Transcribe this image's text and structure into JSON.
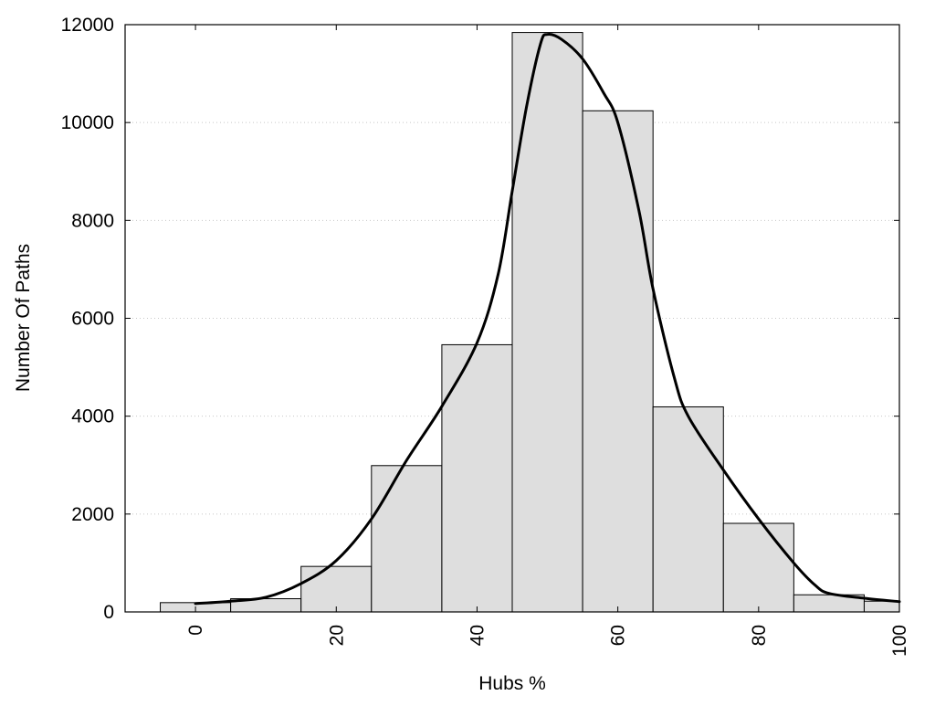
{
  "chart_data": {
    "type": "bar",
    "subtype": "histogram_with_density",
    "title": "",
    "xlabel": "Hubs %",
    "ylabel": "Number Of Paths",
    "xlim": [
      -10,
      100
    ],
    "ylim": [
      0,
      12000
    ],
    "grid": "horizontal-dotted",
    "legend": "none",
    "bar_color": "#dedede",
    "curve_color": "#000000",
    "bins": [
      {
        "from": -5,
        "to": 5,
        "value": 190
      },
      {
        "from": 5,
        "to": 15,
        "value": 270
      },
      {
        "from": 15,
        "to": 25,
        "value": 930
      },
      {
        "from": 25,
        "to": 35,
        "value": 2990
      },
      {
        "from": 35,
        "to": 45,
        "value": 5460
      },
      {
        "from": 45,
        "to": 55,
        "value": 11840
      },
      {
        "from": 55,
        "to": 65,
        "value": 10240
      },
      {
        "from": 65,
        "to": 75,
        "value": 4190
      },
      {
        "from": 75,
        "to": 85,
        "value": 1810
      },
      {
        "from": 85,
        "to": 95,
        "value": 350
      },
      {
        "from": 95,
        "to": 100,
        "value": 220
      }
    ],
    "density_curve": {
      "x": [
        0,
        5,
        10,
        15,
        20,
        25,
        30,
        35,
        40,
        43,
        45,
        47,
        49,
        50,
        52,
        55,
        58,
        60,
        63,
        65,
        68,
        70,
        75,
        80,
        85,
        88,
        90,
        95,
        100
      ],
      "y": [
        170,
        220,
        300,
        580,
        1050,
        1900,
        3100,
        4200,
        5500,
        6900,
        8600,
        10300,
        11600,
        11800,
        11700,
        11300,
        10600,
        10000,
        8200,
        6600,
        4800,
        4000,
        2900,
        1900,
        1000,
        550,
        380,
        280,
        210
      ]
    },
    "x_ticks": [
      {
        "value": 0,
        "label": "0"
      },
      {
        "value": 20,
        "label": "20"
      },
      {
        "value": 40,
        "label": "40"
      },
      {
        "value": 60,
        "label": "60"
      },
      {
        "value": 80,
        "label": "80"
      },
      {
        "value": 100,
        "label": "100"
      }
    ],
    "y_ticks": [
      {
        "value": 0,
        "label": "0"
      },
      {
        "value": 2000,
        "label": "2000"
      },
      {
        "value": 4000,
        "label": "4000"
      },
      {
        "value": 6000,
        "label": "6000"
      },
      {
        "value": 8000,
        "label": "8000"
      },
      {
        "value": 10000,
        "label": "10000"
      },
      {
        "value": 12000,
        "label": "12000"
      }
    ]
  }
}
